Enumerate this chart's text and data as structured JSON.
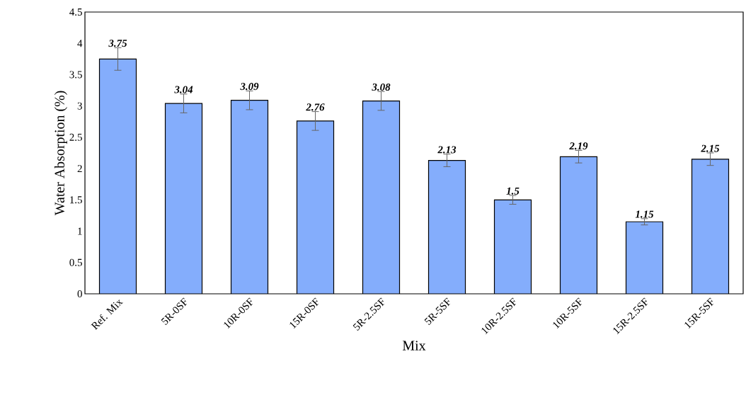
{
  "chart_data": {
    "type": "bar",
    "xlabel": "Mix",
    "ylabel": "Water Absorption  (%)",
    "categories": [
      "Ref. Mix",
      "5R-0SF",
      "10R-0SF",
      "15R-0SF",
      "5R-2.5SF",
      "5R-5SF",
      "10R-2.5SF",
      "10R-5SF",
      "15R-2.5SF",
      "15R-5SF"
    ],
    "values": [
      3.75,
      3.04,
      3.09,
      2.76,
      3.08,
      2.13,
      1.5,
      2.19,
      1.15,
      2.15
    ],
    "errors": [
      0.18,
      0.15,
      0.15,
      0.15,
      0.15,
      0.1,
      0.07,
      0.1,
      0.05,
      0.1
    ],
    "color": "#84adfc",
    "ylim": [
      0,
      4.5
    ],
    "yticks": [
      0,
      0.5,
      1,
      1.5,
      2,
      2.5,
      3,
      3.5,
      4,
      4.5
    ],
    "data_labels": true
  }
}
